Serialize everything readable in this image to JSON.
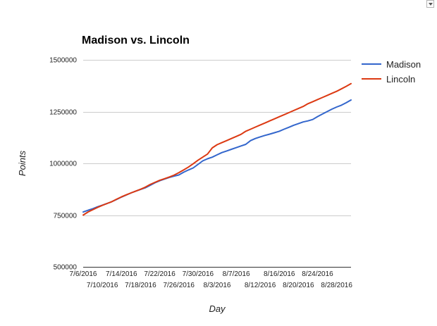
{
  "chart_data": {
    "type": "line",
    "title": "Madison vs. Lincoln",
    "xlabel": "Day",
    "ylabel": "Points",
    "legend_position": "right",
    "grid": true,
    "ylim": [
      500000,
      1500000
    ],
    "y_ticks": [
      500000,
      750000,
      1000000,
      1250000,
      1500000
    ],
    "y_tick_labels": [
      "500000",
      "750000",
      "1000000",
      "1250000",
      "1500000"
    ],
    "x_tick_labels": [
      "7/6/2016",
      "7/10/2016",
      "7/14/2016",
      "7/18/2016",
      "7/22/2016",
      "7/26/2016",
      "7/30/2016",
      "8/3/2016",
      "8/7/2016",
      "8/12/2016",
      "8/16/2016",
      "8/20/2016",
      "8/24/2016",
      "8/28/2016"
    ],
    "x_start": "7/6/2016",
    "x_end": "8/31/2016",
    "x": [
      "7/6/2016",
      "7/7/2016",
      "7/8/2016",
      "7/9/2016",
      "7/10/2016",
      "7/11/2016",
      "7/12/2016",
      "7/13/2016",
      "7/14/2016",
      "7/15/2016",
      "7/16/2016",
      "7/17/2016",
      "7/18/2016",
      "7/19/2016",
      "7/20/2016",
      "7/21/2016",
      "7/22/2016",
      "7/23/2016",
      "7/24/2016",
      "7/25/2016",
      "7/26/2016",
      "7/27/2016",
      "7/28/2016",
      "7/29/2016",
      "7/30/2016",
      "7/31/2016",
      "8/1/2016",
      "8/2/2016",
      "8/3/2016",
      "8/4/2016",
      "8/5/2016",
      "8/6/2016",
      "8/7/2016",
      "8/8/2016",
      "8/9/2016",
      "8/10/2016",
      "8/11/2016",
      "8/12/2016",
      "8/13/2016",
      "8/14/2016",
      "8/15/2016",
      "8/16/2016",
      "8/17/2016",
      "8/18/2016",
      "8/19/2016",
      "8/20/2016",
      "8/21/2016",
      "8/22/2016",
      "8/23/2016",
      "8/24/2016",
      "8/25/2016",
      "8/26/2016",
      "8/27/2016",
      "8/28/2016",
      "8/29/2016",
      "8/30/2016",
      "8/31/2016"
    ],
    "series": [
      {
        "name": "Madison",
        "color": "#3366cc",
        "values": [
          765000,
          773000,
          781000,
          790000,
          798000,
          806000,
          815000,
          826000,
          837000,
          847000,
          857000,
          866000,
          874000,
          882000,
          894000,
          906000,
          916000,
          924000,
          932000,
          938000,
          944000,
          957000,
          968000,
          978000,
          995000,
          1012000,
          1022000,
          1030000,
          1041000,
          1052000,
          1060000,
          1068000,
          1076000,
          1084000,
          1092000,
          1110000,
          1120000,
          1128000,
          1135000,
          1141000,
          1148000,
          1155000,
          1165000,
          1174000,
          1184000,
          1192000,
          1200000,
          1205000,
          1212000,
          1226000,
          1238000,
          1250000,
          1262000,
          1272000,
          1281000,
          1293000,
          1306000
        ]
      },
      {
        "name": "Lincoln",
        "color": "#dc3912",
        "values": [
          750000,
          765000,
          776000,
          787000,
          797000,
          806000,
          815000,
          827000,
          838000,
          848000,
          857000,
          866000,
          875000,
          885000,
          898000,
          908000,
          918000,
          926000,
          934000,
          943000,
          955000,
          968000,
          982000,
          998000,
          1015000,
          1030000,
          1045000,
          1075000,
          1090000,
          1100000,
          1110000,
          1120000,
          1130000,
          1140000,
          1155000,
          1165000,
          1175000,
          1185000,
          1195000,
          1205000,
          1215000,
          1225000,
          1235000,
          1245000,
          1255000,
          1265000,
          1275000,
          1288000,
          1298000,
          1308000,
          1318000,
          1328000,
          1338000,
          1348000,
          1360000,
          1372000,
          1385000
        ]
      }
    ]
  },
  "menu": {
    "icon": "chevron-down-icon"
  }
}
